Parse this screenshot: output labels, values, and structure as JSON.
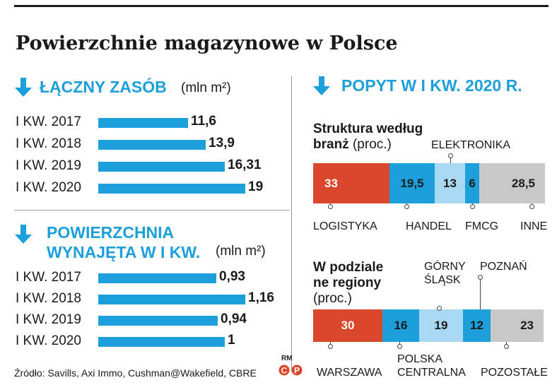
{
  "title": "Powierzchnie magazynowe w Polsce",
  "source": "Źródło: Savills, Axi Immo, Cushman@Wakefield, CBRE",
  "logo_text": "RM",
  "colors": {
    "accent_blue": "#1d9fdc",
    "logistyka_red": "#d9482b",
    "light_blue": "#a9d8f2",
    "gray": "#c8c8c8"
  },
  "chart_data": [
    {
      "type": "bar",
      "title": "ŁĄCZNY ZASÓB",
      "unit": "(mln m²)",
      "categories": [
        "I KW. 2017",
        "I KW. 2018",
        "I KW. 2019",
        "I KW. 2020"
      ],
      "values": [
        11.6,
        13.9,
        16.31,
        19
      ],
      "labels": [
        "11,6",
        "13,9",
        "16,31",
        "19"
      ],
      "icon": "arrow-down-icon"
    },
    {
      "type": "bar",
      "title": "POWIERZCHNIA WYNAJĘTA W I KW.",
      "title_lines": [
        "POWIERZCHNIA",
        "WYNAJĘTA W I KW."
      ],
      "unit": "(mln m²)",
      "categories": [
        "I KW. 2017",
        "I KW. 2018",
        "I KW. 2019",
        "I KW. 2020"
      ],
      "values": [
        0.93,
        1.16,
        0.94,
        1
      ],
      "labels": [
        "0,93",
        "1,16",
        "0,94",
        "1"
      ],
      "icon": "arrow-down-icon"
    },
    {
      "type": "bar",
      "stacked": true,
      "section_title": "POPYT W I KW. 2020 R.",
      "title": "Struktura według branż",
      "title_lines": [
        "Struktura według",
        "branż"
      ],
      "unit": "(proc.)",
      "categories": [
        "LOGISTYKA",
        "HANDEL",
        "ELEKTRONIKA",
        "FMCG",
        "INNE"
      ],
      "values": [
        33,
        19.5,
        13,
        6,
        28.5
      ],
      "labels": [
        "33",
        "19,5",
        "13",
        "6",
        "28,5"
      ],
      "colors": [
        "#d9482b",
        "#1d9fdc",
        "#a9d8f2",
        "#1d9fdc",
        "#c8c8c8"
      ]
    },
    {
      "type": "bar",
      "stacked": true,
      "title": "W podziale ne regiony",
      "title_lines": [
        "W podziale",
        "ne regiony"
      ],
      "unit": "(proc.)",
      "categories": [
        "WARSZAWA",
        "POLSKA CENTRALNA",
        "GÓRNY ŚLĄSK",
        "POZNAŃ",
        "POZOSTAŁE"
      ],
      "category_lines": [
        [
          "WARSZAWA"
        ],
        [
          "POLSKA",
          "CENTRALNA"
        ],
        [
          "GÓRNY",
          "ŚLĄSK"
        ],
        [
          "POZNAŃ"
        ],
        [
          "POZOSTAŁE"
        ]
      ],
      "values": [
        30,
        16,
        19,
        12,
        23
      ],
      "labels": [
        "30",
        "16",
        "19",
        "12",
        "23"
      ],
      "colors": [
        "#d9482b",
        "#1d9fdc",
        "#a9d8f2",
        "#1d9fdc",
        "#c8c8c8"
      ]
    }
  ]
}
